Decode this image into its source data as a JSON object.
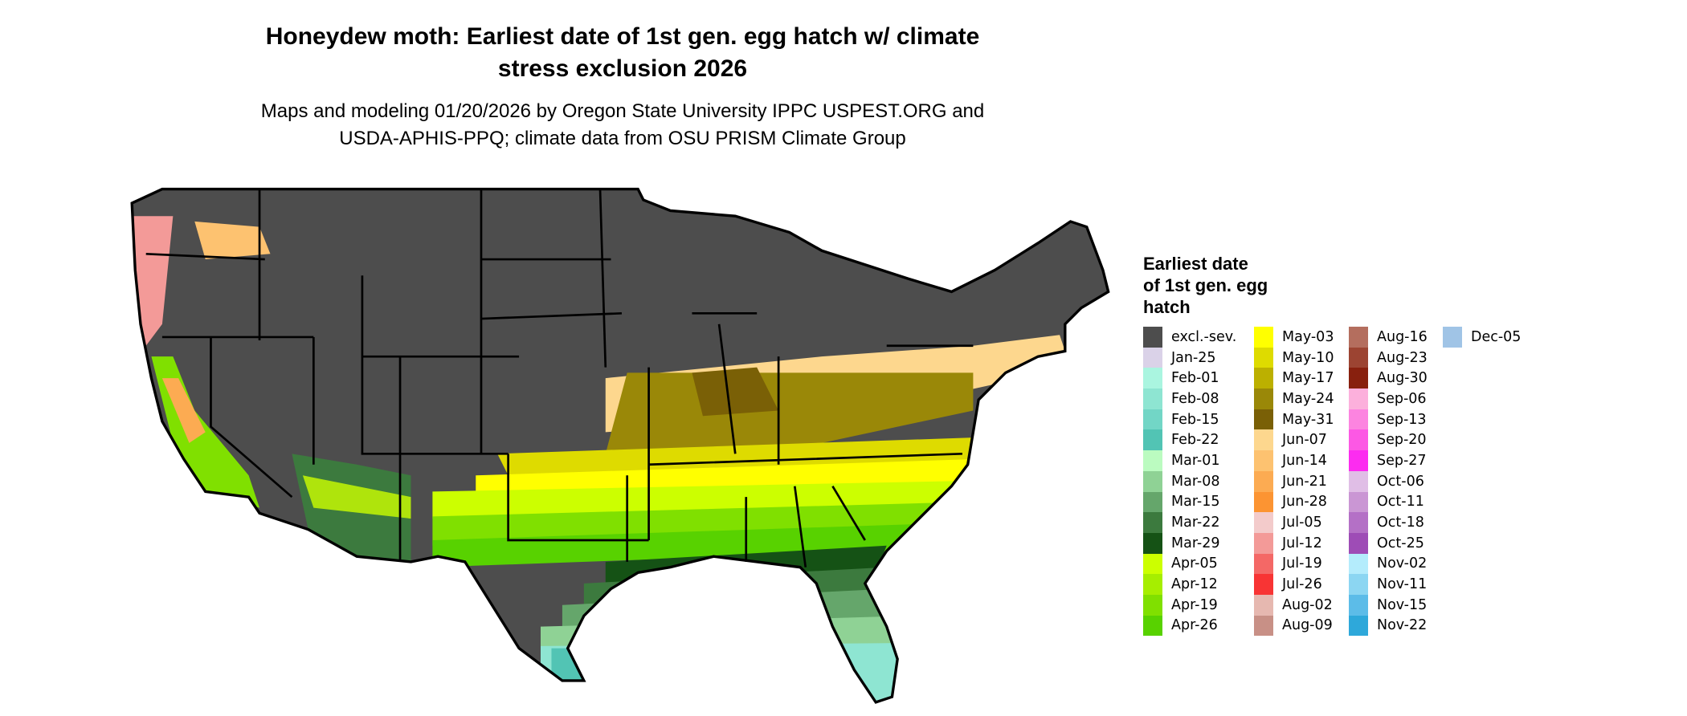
{
  "title_line1": "Honeydew moth: Earliest date of 1st gen. egg hatch w/ climate",
  "title_line2": "stress exclusion 2026",
  "subtitle_line1": "Maps and modeling 01/20/2026 by Oregon State University IPPC USPEST.ORG and",
  "subtitle_line2": "USDA-APHIS-PPQ; climate data from OSU PRISM Climate Group",
  "legend": {
    "title_lines": [
      "Earliest date",
      "of 1st gen. egg",
      "hatch"
    ],
    "columns": [
      [
        {
          "label": "excl.-sev.",
          "color": "#4d4d4d"
        },
        {
          "label": "Jan-25",
          "color": "#dad2e8"
        },
        {
          "label": "Feb-01",
          "color": "#aaf5e0"
        },
        {
          "label": "Feb-08",
          "color": "#8ee5d2"
        },
        {
          "label": "Feb-15",
          "color": "#72d6c6"
        },
        {
          "label": "Feb-22",
          "color": "#52c4b4"
        },
        {
          "label": "Mar-01",
          "color": "#bbfbc0"
        },
        {
          "label": "Mar-08",
          "color": "#8fd295"
        },
        {
          "label": "Mar-15",
          "color": "#65a66b"
        },
        {
          "label": "Mar-22",
          "color": "#3c7a3e"
        },
        {
          "label": "Mar-29",
          "color": "#155215"
        },
        {
          "label": "Apr-05",
          "color": "#ccff00"
        },
        {
          "label": "Apr-12",
          "color": "#a6ee00"
        },
        {
          "label": "Apr-19",
          "color": "#80e000"
        },
        {
          "label": "Apr-26",
          "color": "#58d200"
        }
      ],
      [
        {
          "label": "May-03",
          "color": "#ffff00"
        },
        {
          "label": "May-10",
          "color": "#dedb00"
        },
        {
          "label": "May-17",
          "color": "#bcb000"
        },
        {
          "label": "May-24",
          "color": "#9a8808"
        },
        {
          "label": "May-31",
          "color": "#7a6006"
        },
        {
          "label": "Jun-07",
          "color": "#fdd78e"
        },
        {
          "label": "Jun-14",
          "color": "#fdc270"
        },
        {
          "label": "Jun-21",
          "color": "#fcab52"
        },
        {
          "label": "Jun-28",
          "color": "#fc9432"
        },
        {
          "label": "Jul-05",
          "color": "#f3cbcb"
        },
        {
          "label": "Jul-12",
          "color": "#f39a98"
        },
        {
          "label": "Jul-19",
          "color": "#f46866"
        },
        {
          "label": "Jul-26",
          "color": "#f83434"
        },
        {
          "label": "Aug-02",
          "color": "#e6b8b0"
        },
        {
          "label": "Aug-09",
          "color": "#c89086"
        }
      ],
      [
        {
          "label": "Aug-16",
          "color": "#b46e5e"
        },
        {
          "label": "Aug-23",
          "color": "#9c4432"
        },
        {
          "label": "Aug-30",
          "color": "#88200e"
        },
        {
          "label": "Sep-06",
          "color": "#fcb0dc"
        },
        {
          "label": "Sep-13",
          "color": "#fc84e0"
        },
        {
          "label": "Sep-20",
          "color": "#fc58e4"
        },
        {
          "label": "Sep-27",
          "color": "#fc2cf0"
        },
        {
          "label": "Oct-06",
          "color": "#e0bee6"
        },
        {
          "label": "Oct-11",
          "color": "#ca96d4"
        },
        {
          "label": "Oct-18",
          "color": "#b470c6"
        },
        {
          "label": "Oct-25",
          "color": "#9e4cb6"
        },
        {
          "label": "Nov-02",
          "color": "#b4ecfc"
        },
        {
          "label": "Nov-11",
          "color": "#8cd6f2"
        },
        {
          "label": "Nov-15",
          "color": "#5cbce8"
        },
        {
          "label": "Nov-22",
          "color": "#2ea8da"
        }
      ],
      [
        {
          "label": "Dec-05",
          "color": "#a0c4e6"
        }
      ]
    ]
  }
}
